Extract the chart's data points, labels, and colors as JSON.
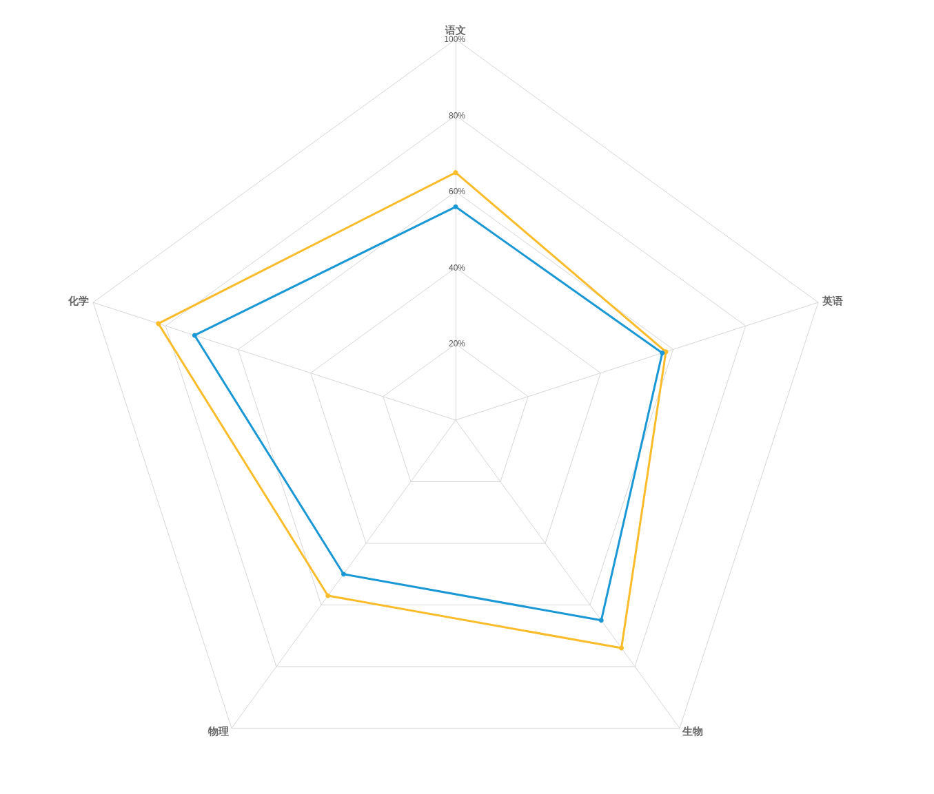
{
  "chart_data": {
    "type": "radar",
    "categories": [
      "语文",
      "英语",
      "生物",
      "物理",
      "化学"
    ],
    "series": [
      {
        "color": "#fbbc2c",
        "values": [
          65,
          58,
          74,
          57,
          82
        ]
      },
      {
        "color": "#1a98d5",
        "values": [
          56,
          57,
          65,
          50,
          72
        ]
      }
    ],
    "ylim": [
      0,
      100
    ],
    "yticks": [
      {
        "value": 20,
        "label": "20%"
      },
      {
        "value": 40,
        "label": "40%"
      },
      {
        "value": 60,
        "label": "60%"
      },
      {
        "value": 80,
        "label": "80%"
      },
      {
        "value": 100,
        "label": "100%"
      }
    ],
    "marker": "circle"
  }
}
